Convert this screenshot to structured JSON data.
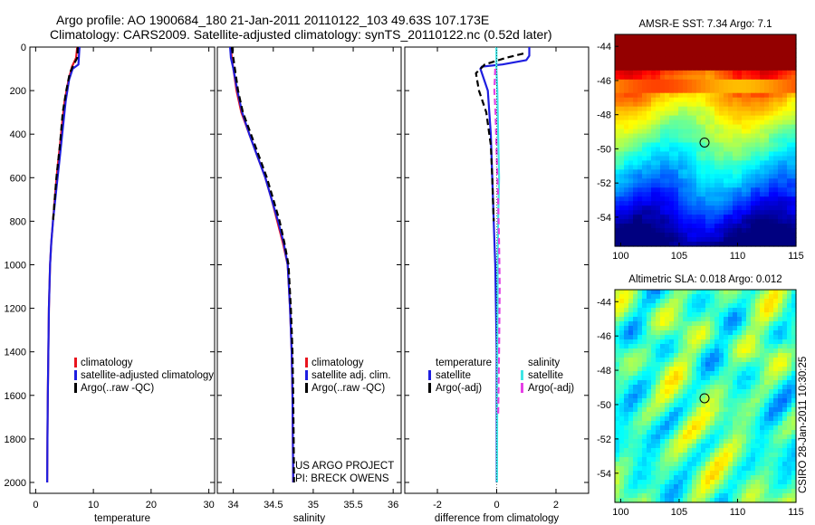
{
  "header": {
    "line1": "Argo profile: AO 1900684_180 21-Jan-2011 20110122_103 49.63S 107.173E",
    "line2": "Climatology: CARS2009. Satellite-adjusted climatology: synTS_20110122.nc (0.52d later)"
  },
  "credits": {
    "project": "US ARGO PROJECT",
    "pi": "PI: BRECK OWENS",
    "stamp": "CSIRO 28-Jan-2011 10:30:25"
  },
  "colors": {
    "climatology": "#e8141e",
    "satellite": "#1e1ee0",
    "argo": "#000000",
    "satellite_salinity": "#3fe6e6",
    "argo_salinity": "#e63fe6"
  },
  "chart_data": [
    {
      "type": "line",
      "xlabel": "temperature",
      "ylabel": "",
      "xlim": [
        -1,
        31
      ],
      "ylim": [
        2050,
        0
      ],
      "xticks": [
        "0",
        "10",
        "20",
        "30"
      ],
      "yticks": [
        "0",
        "200",
        "400",
        "600",
        "800",
        "1000",
        "1200",
        "1400",
        "1600",
        "1800",
        "2000"
      ],
      "legend": [
        "climatology",
        "satellite-adjusted climatology",
        "Argo(..raw -QC)"
      ],
      "series": [
        {
          "name": "climatology",
          "color": "climatology",
          "x": [
            7.2,
            7.0,
            6.3,
            5.7,
            5.0,
            4.6,
            4.2,
            3.8,
            3.3,
            3.0,
            2.7,
            2.5,
            2.3,
            2.2,
            2.1,
            2.05,
            2.0
          ],
          "y": [
            0,
            50,
            90,
            150,
            250,
            350,
            450,
            550,
            700,
            800,
            900,
            1000,
            1200,
            1400,
            1600,
            1800,
            2000
          ]
        },
        {
          "name": "satellite-adjusted climatology",
          "color": "satellite",
          "x": [
            7.6,
            7.5,
            7.4,
            6.4,
            5.8,
            5.2,
            4.6,
            4.2,
            3.6,
            3.0,
            2.7,
            2.5,
            2.3,
            2.2,
            2.1,
            2.05,
            2.0
          ],
          "y": [
            0,
            40,
            80,
            100,
            150,
            250,
            400,
            500,
            650,
            800,
            900,
            1000,
            1200,
            1400,
            1600,
            1800,
            2000
          ]
        },
        {
          "name": "Argo(..raw -QC)",
          "color": "argo",
          "dashed": true,
          "x": [
            7.3,
            7.2,
            6.6,
            5.9,
            5.3,
            4.7,
            4.2,
            3.6,
            3.0
          ],
          "y": [
            0,
            50,
            80,
            120,
            200,
            300,
            450,
            600,
            800
          ]
        }
      ]
    },
    {
      "type": "line",
      "xlabel": "salinity",
      "ylabel": "",
      "xlim": [
        33.8,
        36.1
      ],
      "ylim": [
        2050,
        0
      ],
      "xticks": [
        "34",
        "34.5",
        "35",
        "35.5",
        "36"
      ],
      "legend": [
        "climatology",
        "satellite adj. clim.",
        "Argo(..raw -QC)"
      ],
      "series": [
        {
          "name": "climatology",
          "color": "climatology",
          "x": [
            33.97,
            33.98,
            34.0,
            34.04,
            34.1,
            34.2,
            34.3,
            34.4,
            34.48,
            34.55,
            34.62,
            34.68,
            34.71,
            34.73,
            34.74,
            34.745,
            34.75
          ],
          "y": [
            0,
            50,
            100,
            200,
            300,
            400,
            500,
            600,
            700,
            800,
            900,
            1000,
            1200,
            1400,
            1600,
            1800,
            2000
          ]
        },
        {
          "name": "satellite adj. clim.",
          "color": "satellite",
          "x": [
            33.96,
            33.97,
            34.0,
            34.05,
            34.11,
            34.2,
            34.3,
            34.4,
            34.48,
            34.56,
            34.63,
            34.68,
            34.71,
            34.73,
            34.74,
            34.745,
            34.75
          ],
          "y": [
            0,
            50,
            100,
            200,
            300,
            400,
            500,
            600,
            700,
            800,
            900,
            1000,
            1200,
            1400,
            1600,
            1800,
            2000
          ]
        },
        {
          "name": "Argo(..raw -QC)",
          "color": "argo",
          "dashed": true,
          "x": [
            33.98,
            34.0,
            34.02,
            34.06,
            34.12,
            34.22,
            34.32,
            34.42,
            34.5,
            34.58,
            34.64,
            34.69,
            34.72,
            34.74,
            34.75,
            34.755,
            34.76
          ],
          "y": [
            0,
            50,
            100,
            200,
            300,
            400,
            500,
            600,
            700,
            800,
            900,
            1000,
            1200,
            1400,
            1600,
            1800,
            2000
          ]
        }
      ]
    },
    {
      "type": "line",
      "xlabel": "difference from climatology",
      "ylabel": "",
      "xlim": [
        -3.1,
        3.1
      ],
      "ylim": [
        2050,
        0
      ],
      "xticks": [
        "-2",
        "0",
        "2"
      ],
      "legend_groups": [
        {
          "heading": "temperature",
          "entries": [
            "satellite",
            "Argo(-adj)"
          ]
        },
        {
          "heading": "salinity",
          "entries": [
            "satellite",
            "Argo(-adj)"
          ]
        }
      ],
      "series": [
        {
          "name": "satellite",
          "group": "temperature",
          "color": "satellite",
          "x": [
            1.1,
            1.1,
            1.0,
            0.2,
            -0.5,
            -0.55,
            -0.3,
            -0.2,
            -0.15,
            -0.1,
            -0.05,
            0.0,
            0.0,
            0.0
          ],
          "y": [
            0,
            40,
            60,
            80,
            90,
            100,
            200,
            400,
            600,
            800,
            1000,
            1400,
            1800,
            2000
          ]
        },
        {
          "name": "Argo(-adj)",
          "group": "temperature",
          "color": "argo",
          "dashed": true,
          "x": [
            0.9,
            0.3,
            -0.4,
            -0.7,
            -0.6,
            -0.35,
            -0.2,
            -0.15,
            -0.1
          ],
          "y": [
            30,
            50,
            80,
            120,
            200,
            300,
            450,
            600,
            800
          ]
        },
        {
          "name": "satellite",
          "group": "salinity",
          "color": "satellite_salinity",
          "x": [
            -0.01,
            -0.01,
            0.02,
            0.05,
            0.08,
            0.05,
            0.03,
            0.02,
            0.01
          ],
          "y": [
            0,
            100,
            200,
            400,
            600,
            800,
            1000,
            1400,
            2000
          ]
        },
        {
          "name": "Argo(-adj)",
          "group": "salinity",
          "color": "argo_salinity",
          "dashed": true,
          "x": [
            -0.05,
            -0.08,
            -0.04,
            0.0,
            0.05,
            0.08,
            0.1,
            0.08,
            0.05
          ],
          "y": [
            100,
            200,
            300,
            500,
            700,
            900,
            1100,
            1400,
            1700
          ]
        }
      ]
    },
    {
      "type": "heatmap",
      "title": "AMSR-E SST: 7.34  Argo: 7.1",
      "xlim": [
        99.5,
        115
      ],
      "ylim": [
        -55.7,
        -43.3
      ],
      "xticks": [
        "100",
        "105",
        "110",
        "115"
      ],
      "yticks": [
        "-44",
        "-46",
        "-48",
        "-50",
        "-52",
        "-54"
      ],
      "colorscale": "jet",
      "marker": {
        "lon": 107.173,
        "lat": -49.63
      }
    },
    {
      "type": "heatmap",
      "title": "Altimetric SLA: 0.018  Argo: 0.012",
      "xlim": [
        99.5,
        115
      ],
      "ylim": [
        -55.7,
        -43.3
      ],
      "xticks": [
        "100",
        "105",
        "110",
        "115"
      ],
      "yticks": [
        "-44",
        "-46",
        "-48",
        "-50",
        "-52",
        "-54"
      ],
      "colorscale": "jet",
      "marker": {
        "lon": 107.173,
        "lat": -49.63
      }
    }
  ]
}
